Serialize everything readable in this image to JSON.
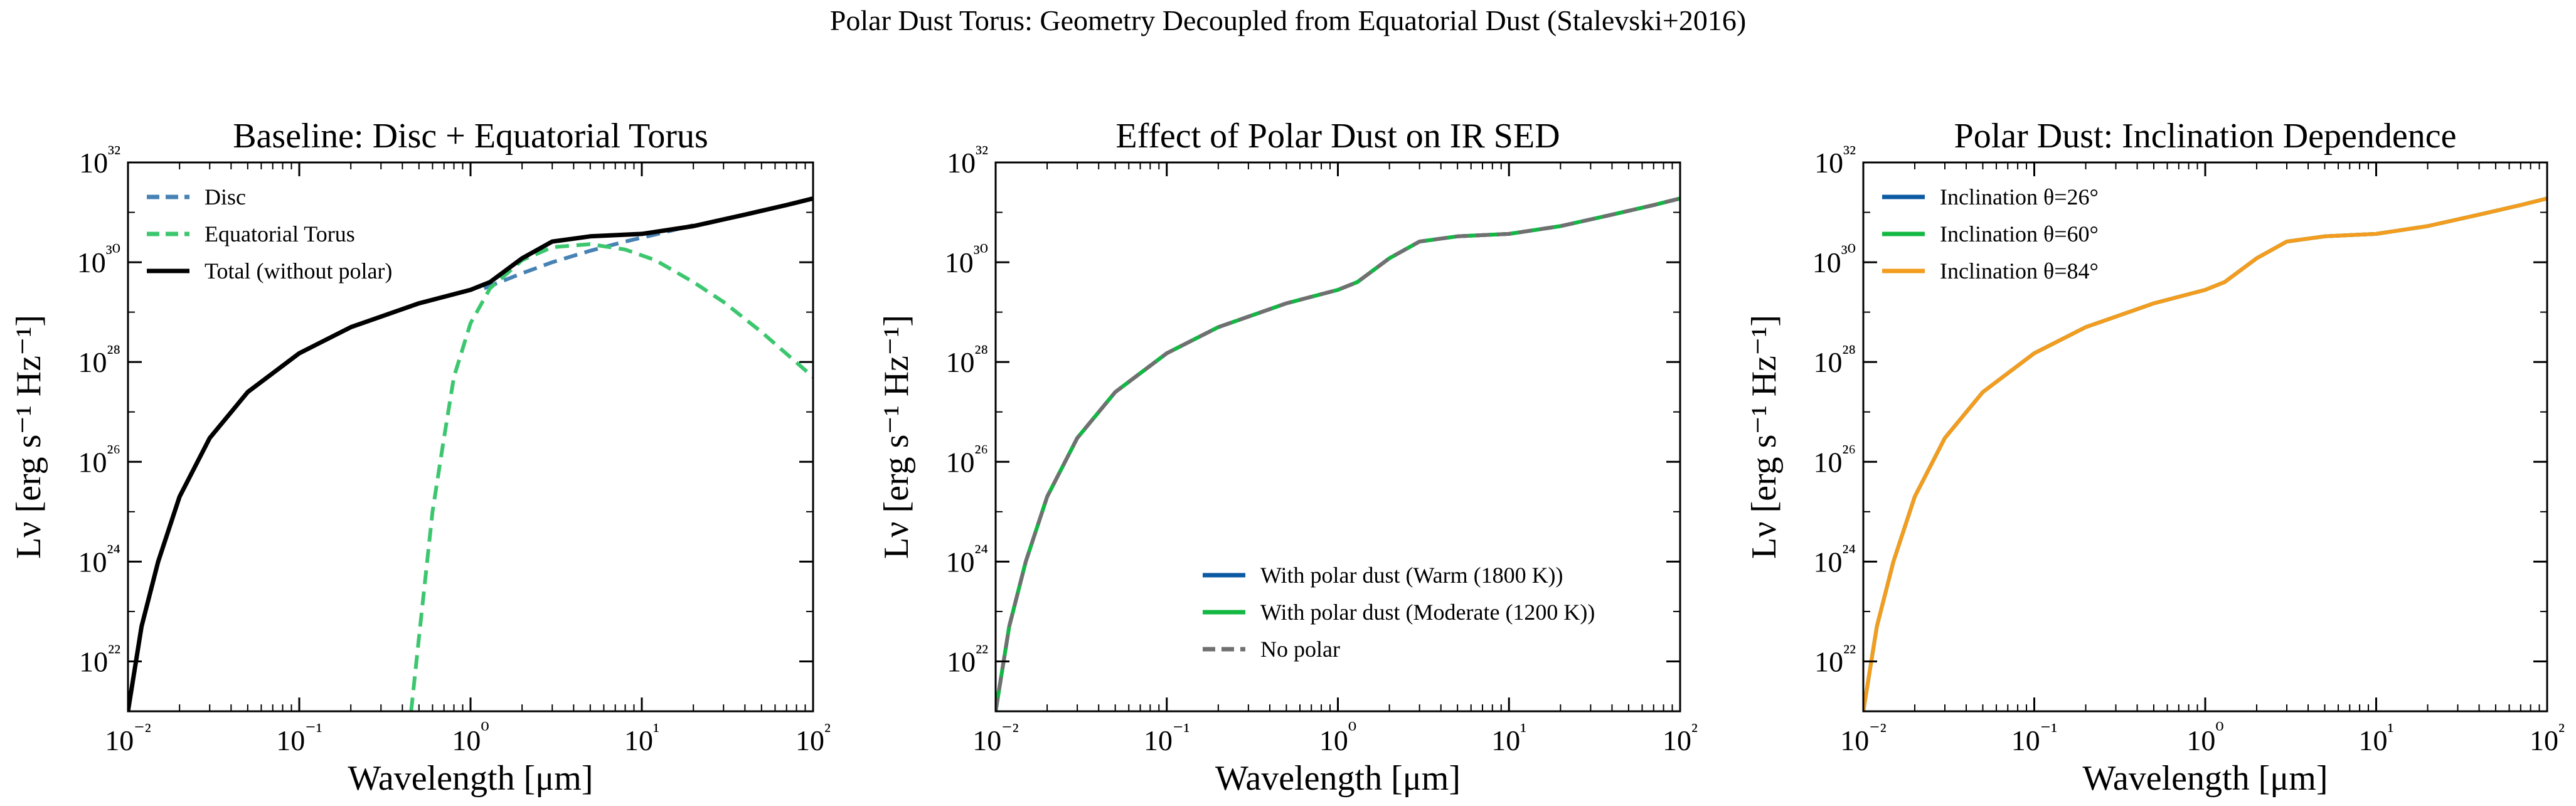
{
  "figure": {
    "suptitle": "Polar Dust Torus: Geometry Decoupled from Equatorial Dust (Stalevski+2016)"
  },
  "chart_data": [
    {
      "type": "line",
      "title": "Baseline: Disc + Equatorial Torus",
      "xlabel": "Wavelength [μm]",
      "ylabel": "Lν [erg s⁻¹ Hz⁻¹]",
      "xscale": "log",
      "yscale": "log",
      "xlim": [
        0.01,
        100
      ],
      "ylim": [
        1e+21,
        1e+32
      ],
      "xticks": [
        "10⁻²",
        "10⁻¹",
        "10⁰",
        "10¹",
        "10²"
      ],
      "yticks": [
        "10²²",
        "10²⁴",
        "10²⁶",
        "10²⁸",
        "10³⁰",
        "10³²"
      ],
      "legend_position": "upper-left",
      "grid": false,
      "series": [
        {
          "name": "Disc",
          "color": "#4682b4",
          "style": "dashed",
          "points": [
            [
              1.2,
              3e+29
            ],
            [
              2,
              6e+29
            ],
            [
              3,
              1e+30
            ],
            [
              5,
              1.7e+30
            ],
            [
              8,
              2.6e+30
            ],
            [
              12,
              3.6e+30
            ],
            [
              20,
              5.5e+30
            ]
          ]
        },
        {
          "name": "Equatorial Torus",
          "color": "#3cc76f",
          "style": "dashed",
          "points": [
            [
              0.45,
              1e+21
            ],
            [
              0.5,
              3e+22
            ],
            [
              0.6,
              1e+25
            ],
            [
              0.7,
              3e+26
            ],
            [
              0.8,
              5e+27
            ],
            [
              1.0,
              6e+28
            ],
            [
              1.3,
              3e+29
            ],
            [
              2,
              1.1e+30
            ],
            [
              3,
              2e+30
            ],
            [
              5,
              2.3e+30
            ],
            [
              8,
              1.8e+30
            ],
            [
              12,
              1.1e+30
            ],
            [
              20,
              4e+29
            ],
            [
              30,
              1.6e+29
            ],
            [
              50,
              4e+28
            ],
            [
              100,
              5e+27
            ]
          ]
        },
        {
          "name": "Total (without polar)",
          "color": "#000000",
          "style": "solid",
          "points": [
            [
              0.01,
              1e+21
            ],
            [
              0.012,
              5e+22
            ],
            [
              0.015,
              1e+24
            ],
            [
              0.02,
              2e+25
            ],
            [
              0.03,
              3e+26
            ],
            [
              0.05,
              2.5e+27
            ],
            [
              0.1,
              1.5e+28
            ],
            [
              0.2,
              5e+28
            ],
            [
              0.5,
              1.5e+29
            ],
            [
              1.0,
              2.8e+29
            ],
            [
              1.3,
              4e+29
            ],
            [
              2,
              1.2e+30
            ],
            [
              3,
              2.6e+30
            ],
            [
              5,
              3.3e+30
            ],
            [
              10,
              3.7e+30
            ],
            [
              20,
              5.3e+30
            ],
            [
              40,
              9e+30
            ],
            [
              70,
              1.4e+31
            ],
            [
              100,
              1.9e+31
            ]
          ]
        }
      ]
    },
    {
      "type": "line",
      "title": "Effect of Polar Dust on IR SED",
      "xlabel": "Wavelength [μm]",
      "ylabel": "Lν [erg s⁻¹ Hz⁻¹]",
      "xscale": "log",
      "yscale": "log",
      "xlim": [
        0.01,
        100
      ],
      "ylim": [
        1e+21,
        1e+32
      ],
      "xticks": [
        "10⁻²",
        "10⁻¹",
        "10⁰",
        "10¹",
        "10²"
      ],
      "yticks": [
        "10²²",
        "10²⁴",
        "10²⁶",
        "10²⁸",
        "10³⁰",
        "10³²"
      ],
      "legend_position": "lower-right",
      "grid": false,
      "series": [
        {
          "name": "With polar dust (Warm (1800 K))",
          "color": "#0b5aa3",
          "style": "solid",
          "points": [
            [
              0.01,
              1e+21
            ],
            [
              0.012,
              5e+22
            ],
            [
              0.015,
              1e+24
            ],
            [
              0.02,
              2e+25
            ],
            [
              0.03,
              3e+26
            ],
            [
              0.05,
              2.5e+27
            ],
            [
              0.1,
              1.5e+28
            ],
            [
              0.2,
              5e+28
            ],
            [
              0.5,
              1.5e+29
            ],
            [
              1.0,
              2.8e+29
            ],
            [
              1.3,
              4e+29
            ],
            [
              2,
              1.2e+30
            ],
            [
              3,
              2.6e+30
            ],
            [
              5,
              3.3e+30
            ],
            [
              10,
              3.7e+30
            ],
            [
              20,
              5.3e+30
            ],
            [
              40,
              9e+30
            ],
            [
              70,
              1.4e+31
            ],
            [
              100,
              1.9e+31
            ]
          ]
        },
        {
          "name": "With polar dust (Moderate (1200 K))",
          "color": "#13b842",
          "style": "solid",
          "points": [
            [
              0.01,
              1e+21
            ],
            [
              0.012,
              5e+22
            ],
            [
              0.015,
              1e+24
            ],
            [
              0.02,
              2e+25
            ],
            [
              0.03,
              3e+26
            ],
            [
              0.05,
              2.5e+27
            ],
            [
              0.1,
              1.5e+28
            ],
            [
              0.2,
              5e+28
            ],
            [
              0.5,
              1.5e+29
            ],
            [
              1.0,
              2.8e+29
            ],
            [
              1.3,
              4e+29
            ],
            [
              2,
              1.2e+30
            ],
            [
              3,
              2.6e+30
            ],
            [
              5,
              3.3e+30
            ],
            [
              10,
              3.7e+30
            ],
            [
              20,
              5.3e+30
            ],
            [
              40,
              9e+30
            ],
            [
              70,
              1.4e+31
            ],
            [
              100,
              1.9e+31
            ]
          ]
        },
        {
          "name": "No polar",
          "color": "#707070",
          "style": "dashed",
          "points": [
            [
              0.01,
              1e+21
            ],
            [
              0.012,
              5e+22
            ],
            [
              0.015,
              1e+24
            ],
            [
              0.02,
              2e+25
            ],
            [
              0.03,
              3e+26
            ],
            [
              0.05,
              2.5e+27
            ],
            [
              0.1,
              1.5e+28
            ],
            [
              0.2,
              5e+28
            ],
            [
              0.5,
              1.5e+29
            ],
            [
              1.0,
              2.8e+29
            ],
            [
              1.3,
              4e+29
            ],
            [
              2,
              1.2e+30
            ],
            [
              3,
              2.6e+30
            ],
            [
              5,
              3.3e+30
            ],
            [
              10,
              3.7e+30
            ],
            [
              20,
              5.3e+30
            ],
            [
              40,
              9e+30
            ],
            [
              70,
              1.4e+31
            ],
            [
              100,
              1.9e+31
            ]
          ]
        }
      ]
    },
    {
      "type": "line",
      "title": "Polar Dust: Inclination Dependence",
      "xlabel": "Wavelength [μm]",
      "ylabel": "Lν [erg s⁻¹ Hz⁻¹]",
      "xscale": "log",
      "yscale": "log",
      "xlim": [
        0.01,
        100
      ],
      "ylim": [
        1e+21,
        1e+32
      ],
      "xticks": [
        "10⁻²",
        "10⁻¹",
        "10⁰",
        "10¹",
        "10²"
      ],
      "yticks": [
        "10²²",
        "10²⁴",
        "10²⁶",
        "10²⁸",
        "10³⁰",
        "10³²"
      ],
      "legend_position": "upper-left",
      "grid": false,
      "series": [
        {
          "name": "Inclination θ=26°",
          "color": "#0b5aa3",
          "style": "solid",
          "points": [
            [
              0.01,
              1e+21
            ],
            [
              0.012,
              5e+22
            ],
            [
              0.015,
              1e+24
            ],
            [
              0.02,
              2e+25
            ],
            [
              0.03,
              3e+26
            ],
            [
              0.05,
              2.5e+27
            ],
            [
              0.1,
              1.5e+28
            ],
            [
              0.2,
              5e+28
            ],
            [
              0.5,
              1.5e+29
            ],
            [
              1.0,
              2.8e+29
            ],
            [
              1.3,
              4e+29
            ],
            [
              2,
              1.2e+30
            ],
            [
              3,
              2.6e+30
            ],
            [
              5,
              3.3e+30
            ],
            [
              10,
              3.7e+30
            ],
            [
              20,
              5.3e+30
            ],
            [
              40,
              9e+30
            ],
            [
              70,
              1.4e+31
            ],
            [
              100,
              1.9e+31
            ]
          ]
        },
        {
          "name": "Inclination θ=60°",
          "color": "#13b842",
          "style": "solid",
          "points": [
            [
              0.01,
              1e+21
            ],
            [
              0.012,
              5e+22
            ],
            [
              0.015,
              1e+24
            ],
            [
              0.02,
              2e+25
            ],
            [
              0.03,
              3e+26
            ],
            [
              0.05,
              2.5e+27
            ],
            [
              0.1,
              1.5e+28
            ],
            [
              0.2,
              5e+28
            ],
            [
              0.5,
              1.5e+29
            ],
            [
              1.0,
              2.8e+29
            ],
            [
              1.3,
              4e+29
            ],
            [
              2,
              1.2e+30
            ],
            [
              3,
              2.6e+30
            ],
            [
              5,
              3.3e+30
            ],
            [
              10,
              3.7e+30
            ],
            [
              20,
              5.3e+30
            ],
            [
              40,
              9e+30
            ],
            [
              70,
              1.4e+31
            ],
            [
              100,
              1.9e+31
            ]
          ]
        },
        {
          "name": "Inclination θ=84°",
          "color": "#f39c1f",
          "style": "solid",
          "points": [
            [
              0.01,
              1e+21
            ],
            [
              0.012,
              5e+22
            ],
            [
              0.015,
              1e+24
            ],
            [
              0.02,
              2e+25
            ],
            [
              0.03,
              3e+26
            ],
            [
              0.05,
              2.5e+27
            ],
            [
              0.1,
              1.5e+28
            ],
            [
              0.2,
              5e+28
            ],
            [
              0.5,
              1.5e+29
            ],
            [
              1.0,
              2.8e+29
            ],
            [
              1.3,
              4e+29
            ],
            [
              2,
              1.2e+30
            ],
            [
              3,
              2.6e+30
            ],
            [
              5,
              3.3e+30
            ],
            [
              10,
              3.7e+30
            ],
            [
              20,
              5.3e+30
            ],
            [
              40,
              9e+30
            ],
            [
              70,
              1.4e+31
            ],
            [
              100,
              1.9e+31
            ]
          ]
        }
      ]
    }
  ]
}
